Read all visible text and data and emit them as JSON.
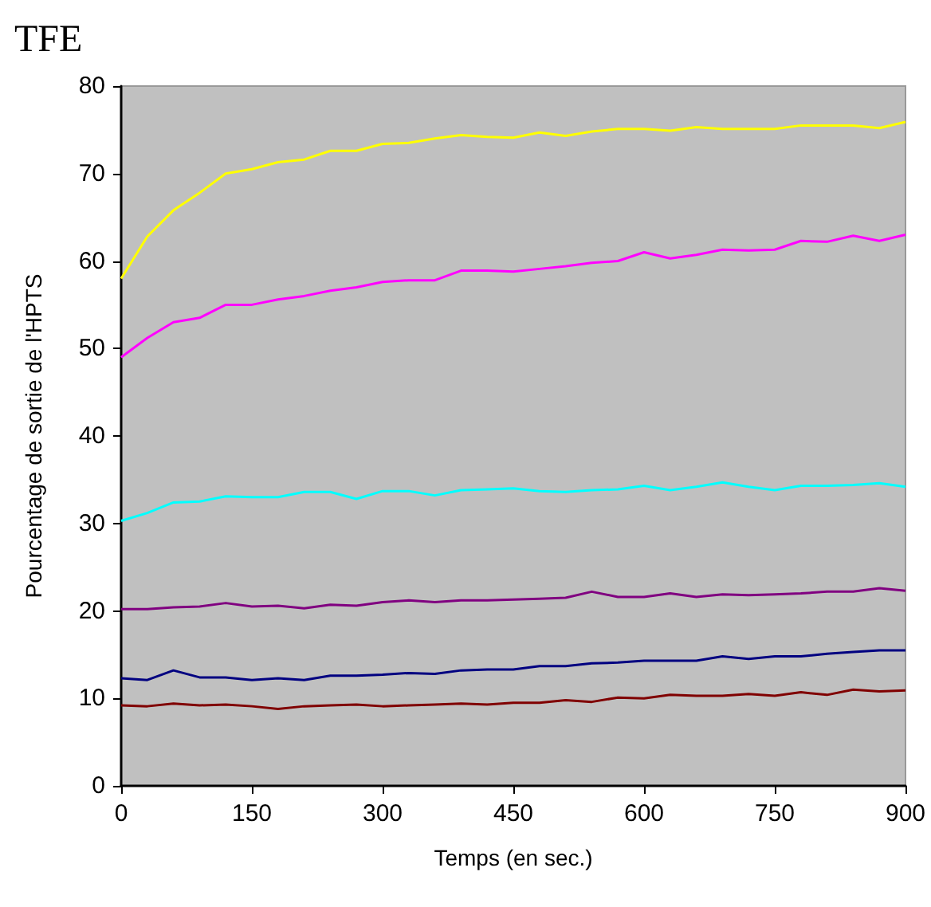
{
  "chart_data": {
    "type": "line",
    "title": "TFE",
    "xlabel": "Temps (en sec.)",
    "ylabel": "Pourcentage de sortie de l'HPTS",
    "x": [
      0,
      30,
      60,
      90,
      120,
      150,
      180,
      210,
      240,
      270,
      300,
      330,
      360,
      390,
      420,
      450,
      480,
      510,
      540,
      570,
      600,
      630,
      660,
      690,
      720,
      750,
      780,
      810,
      840,
      870,
      900
    ],
    "xlim": [
      0,
      900
    ],
    "xticks": [
      0,
      150,
      300,
      450,
      600,
      750,
      900
    ],
    "ylim": [
      0,
      80
    ],
    "yticks": [
      0,
      10,
      20,
      30,
      40,
      50,
      60,
      70,
      80
    ],
    "grid": false,
    "marker": "none",
    "line_style": "solid",
    "series": [
      {
        "color": "#ffff00",
        "values": [
          58,
          62.8,
          65.8,
          67.8,
          70,
          70.5,
          71.3,
          71.6,
          72.6,
          72.6,
          73.4,
          73.5,
          74,
          74.4,
          74.2,
          74.1,
          74.7,
          74.3,
          74.8,
          75.1,
          75.1,
          74.9,
          75.3,
          75.1,
          75.1,
          75.1,
          75.5,
          75.5,
          75.5,
          75.2,
          75.9
        ]
      },
      {
        "color": "#ff00ff",
        "values": [
          49,
          51.2,
          53,
          53.5,
          55,
          55,
          55.6,
          56,
          56.6,
          57,
          57.6,
          57.8,
          57.8,
          58.9,
          58.9,
          58.8,
          59.1,
          59.4,
          59.8,
          60,
          61,
          60.3,
          60.7,
          61.3,
          61.2,
          61.3,
          62.3,
          62.2,
          62.9,
          62.3,
          63
        ]
      },
      {
        "color": "#00ffff",
        "values": [
          30.3,
          31.2,
          32.4,
          32.5,
          33.1,
          33,
          33,
          33.6,
          33.6,
          32.8,
          33.7,
          33.7,
          33.2,
          33.8,
          33.9,
          34,
          33.7,
          33.6,
          33.8,
          33.9,
          34.3,
          33.8,
          34.2,
          34.7,
          34.2,
          33.8,
          34.3,
          34.3,
          34.4,
          34.6,
          34.2
        ]
      },
      {
        "color": "#800080",
        "values": [
          20.2,
          20.2,
          20.4,
          20.5,
          20.9,
          20.5,
          20.6,
          20.3,
          20.7,
          20.6,
          21,
          21.2,
          21,
          21.2,
          21.2,
          21.3,
          21.4,
          21.5,
          22.2,
          21.6,
          21.6,
          22,
          21.6,
          21.9,
          21.8,
          21.9,
          22,
          22.2,
          22.2,
          22.6,
          22.3
        ]
      },
      {
        "color": "#000080",
        "values": [
          12.3,
          12.1,
          13.2,
          12.4,
          12.4,
          12.1,
          12.3,
          12.1,
          12.6,
          12.6,
          12.7,
          12.9,
          12.8,
          13.2,
          13.3,
          13.3,
          13.7,
          13.7,
          14,
          14.1,
          14.3,
          14.3,
          14.3,
          14.8,
          14.5,
          14.8,
          14.8,
          15.1,
          15.3,
          15.5,
          15.5
        ]
      },
      {
        "color": "#800000",
        "values": [
          9.2,
          9.1,
          9.4,
          9.2,
          9.3,
          9.1,
          8.8,
          9.1,
          9.2,
          9.3,
          9.1,
          9.2,
          9.3,
          9.4,
          9.3,
          9.5,
          9.5,
          9.8,
          9.6,
          10.1,
          10,
          10.4,
          10.3,
          10.3,
          10.5,
          10.3,
          10.7,
          10.4,
          11,
          10.8,
          10.9
        ]
      }
    ]
  }
}
